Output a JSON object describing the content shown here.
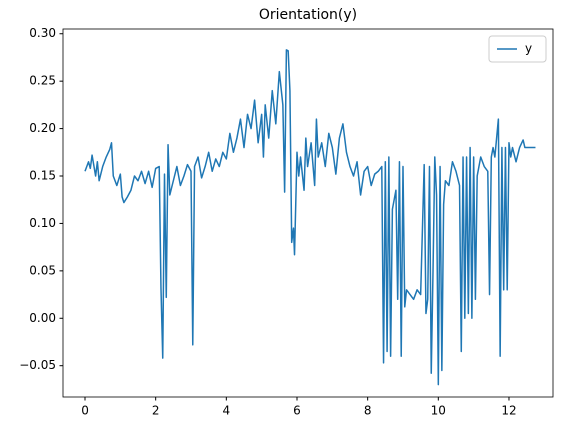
{
  "chart_data": {
    "type": "line",
    "title": "Orientation(y)",
    "x": [
      0.0,
      0.1,
      0.15,
      0.2,
      0.3,
      0.35,
      0.4,
      0.5,
      0.6,
      0.7,
      0.75,
      0.8,
      0.9,
      1.0,
      1.05,
      1.1,
      1.2,
      1.3,
      1.4,
      1.5,
      1.6,
      1.7,
      1.8,
      1.9,
      2.0,
      2.1,
      2.15,
      2.2,
      2.25,
      2.3,
      2.35,
      2.4,
      2.5,
      2.6,
      2.7,
      2.8,
      2.9,
      3.0,
      3.05,
      3.1,
      3.2,
      3.3,
      3.4,
      3.5,
      3.6,
      3.7,
      3.8,
      3.9,
      4.0,
      4.1,
      4.2,
      4.3,
      4.4,
      4.5,
      4.6,
      4.7,
      4.8,
      4.9,
      5.0,
      5.05,
      5.1,
      5.2,
      5.3,
      5.4,
      5.5,
      5.6,
      5.65,
      5.7,
      5.75,
      5.8,
      5.85,
      5.9,
      5.93,
      6.0,
      6.05,
      6.1,
      6.2,
      6.25,
      6.3,
      6.4,
      6.5,
      6.55,
      6.6,
      6.7,
      6.8,
      6.9,
      7.0,
      7.1,
      7.2,
      7.3,
      7.4,
      7.5,
      7.6,
      7.7,
      7.8,
      7.9,
      8.0,
      8.1,
      8.2,
      8.3,
      8.4,
      8.45,
      8.5,
      8.55,
      8.6,
      8.65,
      8.7,
      8.8,
      8.85,
      8.9,
      8.95,
      9.0,
      9.05,
      9.1,
      9.2,
      9.3,
      9.4,
      9.5,
      9.6,
      9.65,
      9.7,
      9.75,
      9.8,
      9.85,
      9.9,
      9.95,
      10.0,
      10.05,
      10.1,
      10.15,
      10.2,
      10.3,
      10.4,
      10.5,
      10.6,
      10.65,
      10.7,
      10.75,
      10.8,
      10.85,
      10.9,
      10.95,
      11.0,
      11.05,
      11.1,
      11.2,
      11.3,
      11.4,
      11.45,
      11.5,
      11.55,
      11.6,
      11.7,
      11.75,
      11.8,
      11.85,
      11.9,
      11.95,
      12.0,
      12.05,
      12.1,
      12.2,
      12.3,
      12.4,
      12.45,
      12.75
    ],
    "series": [
      {
        "name": "y",
        "color": "#1f77b4",
        "values": [
          0.155,
          0.165,
          0.158,
          0.172,
          0.15,
          0.165,
          0.145,
          0.16,
          0.17,
          0.178,
          0.185,
          0.15,
          0.14,
          0.152,
          0.128,
          0.122,
          0.128,
          0.135,
          0.15,
          0.145,
          0.155,
          0.142,
          0.155,
          0.138,
          0.158,
          0.16,
          0.032,
          -0.042,
          0.152,
          0.022,
          0.183,
          0.13,
          0.145,
          0.16,
          0.14,
          0.15,
          0.162,
          0.155,
          -0.028,
          0.16,
          0.17,
          0.148,
          0.16,
          0.175,
          0.155,
          0.168,
          0.16,
          0.175,
          0.168,
          0.195,
          0.175,
          0.19,
          0.21,
          0.18,
          0.215,
          0.2,
          0.23,
          0.185,
          0.215,
          0.17,
          0.225,
          0.19,
          0.24,
          0.205,
          0.26,
          0.225,
          0.133,
          0.283,
          0.282,
          0.24,
          0.08,
          0.095,
          0.067,
          0.175,
          0.15,
          0.17,
          0.135,
          0.19,
          0.16,
          0.185,
          0.14,
          0.21,
          0.17,
          0.185,
          0.16,
          0.195,
          0.18,
          0.152,
          0.19,
          0.205,
          0.175,
          0.16,
          0.15,
          0.165,
          0.13,
          0.155,
          0.16,
          0.14,
          0.152,
          0.155,
          0.16,
          -0.047,
          0.165,
          -0.035,
          0.17,
          -0.04,
          0.115,
          0.135,
          0.02,
          0.165,
          -0.04,
          0.16,
          0.012,
          0.03,
          0.025,
          0.02,
          0.03,
          0.025,
          0.162,
          0.005,
          0.02,
          0.16,
          -0.058,
          0.05,
          0.17,
          0.13,
          -0.07,
          0.16,
          -0.055,
          0.12,
          0.145,
          0.14,
          0.165,
          0.155,
          0.14,
          -0.035,
          0.17,
          0.0,
          0.17,
          0.005,
          0.18,
          0.0,
          0.17,
          0.02,
          0.15,
          0.17,
          0.16,
          0.155,
          0.025,
          0.17,
          0.18,
          0.17,
          0.21,
          -0.04,
          0.18,
          0.03,
          0.18,
          0.03,
          0.185,
          0.17,
          0.18,
          0.165,
          0.18,
          0.188,
          0.18,
          0.18
        ]
      }
    ],
    "xlim": [
      -0.623,
      13.246
    ],
    "xticks": [
      0,
      2,
      4,
      6,
      8,
      10,
      12
    ],
    "ylim": [
      -0.083,
      0.305
    ],
    "yticks": [
      {
        "value": -0.05,
        "label": "−0.05"
      },
      {
        "value": 0.0,
        "label": "0.00"
      },
      {
        "value": 0.05,
        "label": "0.05"
      },
      {
        "value": 0.1,
        "label": "0.10"
      },
      {
        "value": 0.15,
        "label": "0.15"
      },
      {
        "value": 0.2,
        "label": "0.20"
      },
      {
        "value": 0.25,
        "label": "0.25"
      },
      {
        "value": 0.3,
        "label": "0.30"
      }
    ],
    "grid": false,
    "legend": "upper right"
  }
}
